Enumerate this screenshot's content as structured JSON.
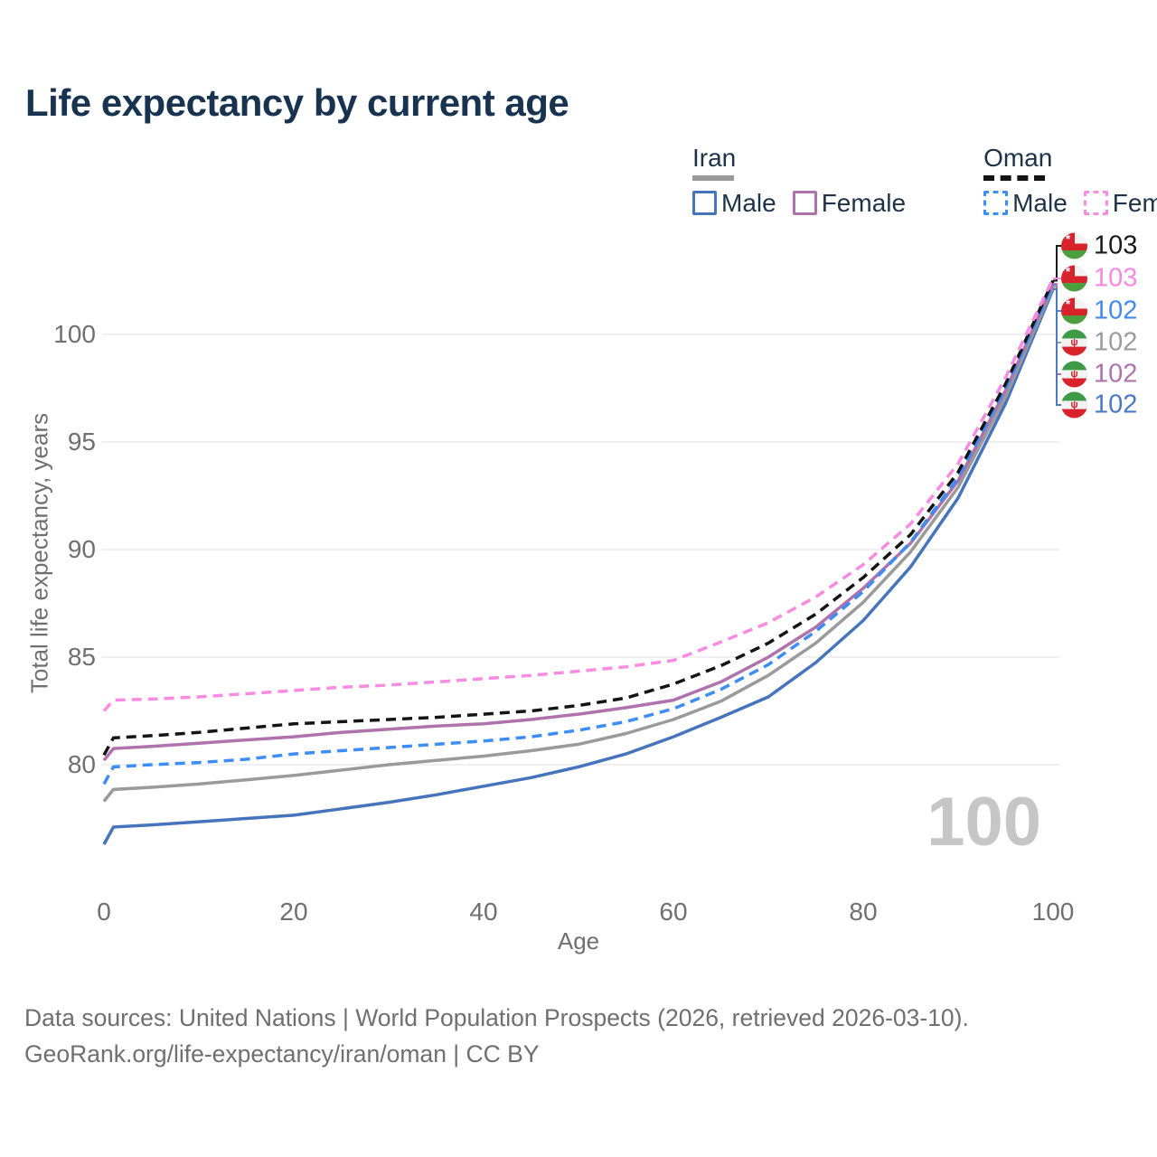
{
  "title": "Life expectancy by current age",
  "age_counter": "100",
  "legend": {
    "groups": [
      {
        "id": "iran",
        "label": "Iran",
        "line_style": "solid",
        "line_color": "#9a9a9a",
        "items": [
          {
            "id": "iran_male",
            "label": "Male",
            "color": "#4574bd",
            "dashed": false
          },
          {
            "id": "iran_female",
            "label": "Female",
            "color": "#b072ad",
            "dashed": false
          }
        ]
      },
      {
        "id": "oman",
        "label": "Oman",
        "line_style": "dashed",
        "line_color": "#141414",
        "items": [
          {
            "id": "oman_male",
            "label": "Male",
            "color": "#3c8df5",
            "dashed": true
          },
          {
            "id": "oman_female",
            "label": "Female",
            "color": "#fa8be2",
            "dashed": true
          }
        ]
      }
    ]
  },
  "chart_data": {
    "type": "line",
    "title": "Life expectancy by current age",
    "xlabel": "Age",
    "ylabel": "Total life expectancy, years",
    "xticks": [
      0,
      20,
      40,
      60,
      80,
      100
    ],
    "yticks": [
      80,
      85,
      90,
      95,
      100
    ],
    "xlim": [
      0,
      100
    ],
    "ylim": [
      74.5,
      104
    ],
    "grid": "horizontal",
    "legend_position": "top-right",
    "x": [
      0,
      1,
      5,
      10,
      15,
      20,
      25,
      30,
      35,
      40,
      45,
      50,
      55,
      60,
      65,
      70,
      75,
      80,
      85,
      90,
      95,
      100
    ],
    "series": [
      {
        "id": "iran_male",
        "name": "Iran Male",
        "country": "Iran",
        "sex": "Male",
        "color": "#4574bd",
        "dashed": false,
        "values": [
          76.3,
          77.1,
          77.2,
          77.35,
          77.5,
          77.65,
          77.95,
          78.25,
          78.6,
          79.0,
          79.4,
          79.9,
          80.5,
          81.3,
          82.2,
          83.15,
          84.75,
          86.7,
          89.2,
          92.4,
          96.8,
          102.1
        ]
      },
      {
        "id": "iran_total",
        "name": "Iran",
        "country": "Iran",
        "sex": "Both",
        "color": "#9a9a9a",
        "dashed": false,
        "values": [
          78.3,
          78.85,
          78.95,
          79.1,
          79.3,
          79.5,
          79.75,
          80.0,
          80.2,
          80.4,
          80.65,
          80.95,
          81.45,
          82.1,
          82.95,
          84.15,
          85.65,
          87.55,
          89.9,
          92.9,
          97.1,
          102.2
        ]
      },
      {
        "id": "iran_female",
        "name": "Iran Female",
        "country": "Iran",
        "sex": "Female",
        "color": "#b072ad",
        "dashed": false,
        "values": [
          80.2,
          80.75,
          80.85,
          81.0,
          81.15,
          81.3,
          81.5,
          81.65,
          81.8,
          81.9,
          82.1,
          82.35,
          82.65,
          83.0,
          83.85,
          85.0,
          86.4,
          88.2,
          90.3,
          93.2,
          97.4,
          102.35
        ]
      },
      {
        "id": "oman_male",
        "name": "Oman Male",
        "country": "Oman",
        "sex": "Male",
        "color": "#3c8df5",
        "dashed": true,
        "values": [
          79.1,
          79.9,
          80.0,
          80.1,
          80.25,
          80.5,
          80.65,
          80.8,
          80.95,
          81.1,
          81.3,
          81.6,
          82.0,
          82.6,
          83.5,
          84.65,
          86.2,
          88.05,
          90.35,
          93.35,
          97.5,
          102.3
        ]
      },
      {
        "id": "oman_total",
        "name": "Oman",
        "country": "Oman",
        "sex": "Both",
        "color": "#141414",
        "dashed": true,
        "values": [
          80.45,
          81.25,
          81.35,
          81.5,
          81.7,
          81.9,
          82.0,
          82.1,
          82.2,
          82.35,
          82.5,
          82.75,
          83.1,
          83.75,
          84.6,
          85.65,
          87.0,
          88.7,
          90.7,
          93.6,
          97.7,
          102.5
        ]
      },
      {
        "id": "oman_female",
        "name": "Oman Female",
        "country": "Oman",
        "sex": "Female",
        "color": "#fa8be2",
        "dashed": true,
        "values": [
          82.5,
          83.0,
          83.05,
          83.15,
          83.3,
          83.45,
          83.6,
          83.7,
          83.85,
          84.0,
          84.15,
          84.35,
          84.55,
          84.85,
          85.7,
          86.6,
          87.8,
          89.3,
          91.2,
          94.0,
          98.0,
          102.6
        ]
      }
    ],
    "end_labels": [
      {
        "series": "oman_total",
        "flag": "oman",
        "value": "103",
        "color": "#1a1a1a"
      },
      {
        "series": "oman_female",
        "flag": "oman",
        "value": "103",
        "color": "#fa87e0"
      },
      {
        "series": "oman_male",
        "flag": "oman",
        "value": "102",
        "color": "#4589ec"
      },
      {
        "series": "iran_total",
        "flag": "iran",
        "value": "102",
        "color": "#9c9c9c"
      },
      {
        "series": "iran_female",
        "flag": "iran",
        "value": "102",
        "color": "#b072ad"
      },
      {
        "series": "iran_male",
        "flag": "iran",
        "value": "102",
        "color": "#4b79c4"
      }
    ]
  },
  "footer": {
    "line1": "Data sources: United Nations | World Population Prospects (2026, retrieved 2026-03-10).",
    "line2": "GeoRank.org/life-expectancy/iran/oman | CC BY"
  }
}
